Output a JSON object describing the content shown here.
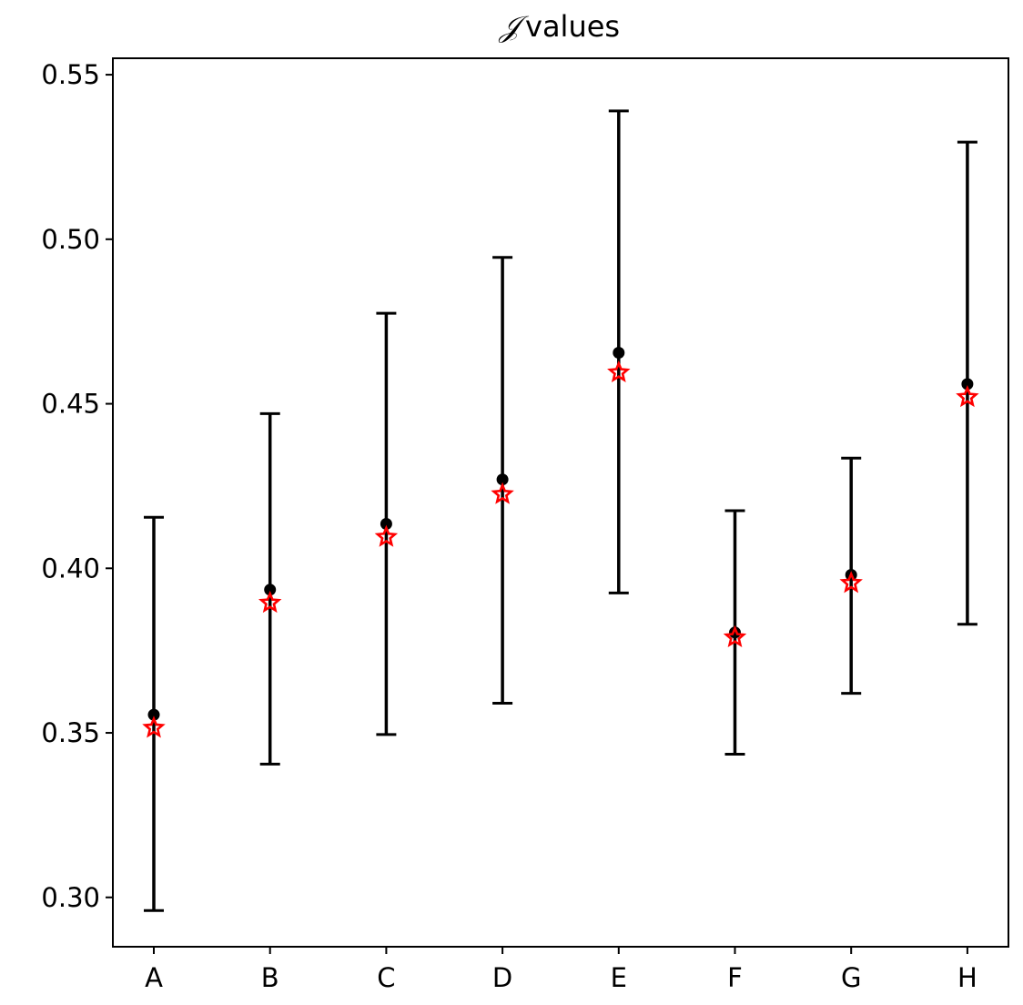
{
  "chart_data": {
    "type": "scatter",
    "title": "𝒥 values",
    "title_parts": {
      "symbol": "𝒥",
      "text": "values"
    },
    "xlabel": "",
    "ylabel": "",
    "categories": [
      "A",
      "B",
      "C",
      "D",
      "E",
      "F",
      "G",
      "H"
    ],
    "ylim": [
      0.285,
      0.555
    ],
    "yticks": [
      0.3,
      0.35,
      0.4,
      0.45,
      0.5,
      0.55
    ],
    "ytick_labels": [
      "0.30",
      "0.35",
      "0.40",
      "0.45",
      "0.50",
      "0.55"
    ],
    "grid": false,
    "series": [
      {
        "marker": "dot",
        "color": "#000000",
        "values": [
          0.3555,
          0.3935,
          0.4135,
          0.427,
          0.4655,
          0.3805,
          0.398,
          0.456
        ],
        "error_low": [
          0.296,
          0.3405,
          0.3495,
          0.359,
          0.3925,
          0.3435,
          0.362,
          0.383
        ],
        "error_high": [
          0.4155,
          0.447,
          0.4775,
          0.4945,
          0.539,
          0.4175,
          0.4335,
          0.5295
        ]
      },
      {
        "marker": "star",
        "color": "#ff0000",
        "values": [
          0.3515,
          0.3895,
          0.4095,
          0.4225,
          0.4595,
          0.379,
          0.3955,
          0.452
        ]
      }
    ]
  }
}
